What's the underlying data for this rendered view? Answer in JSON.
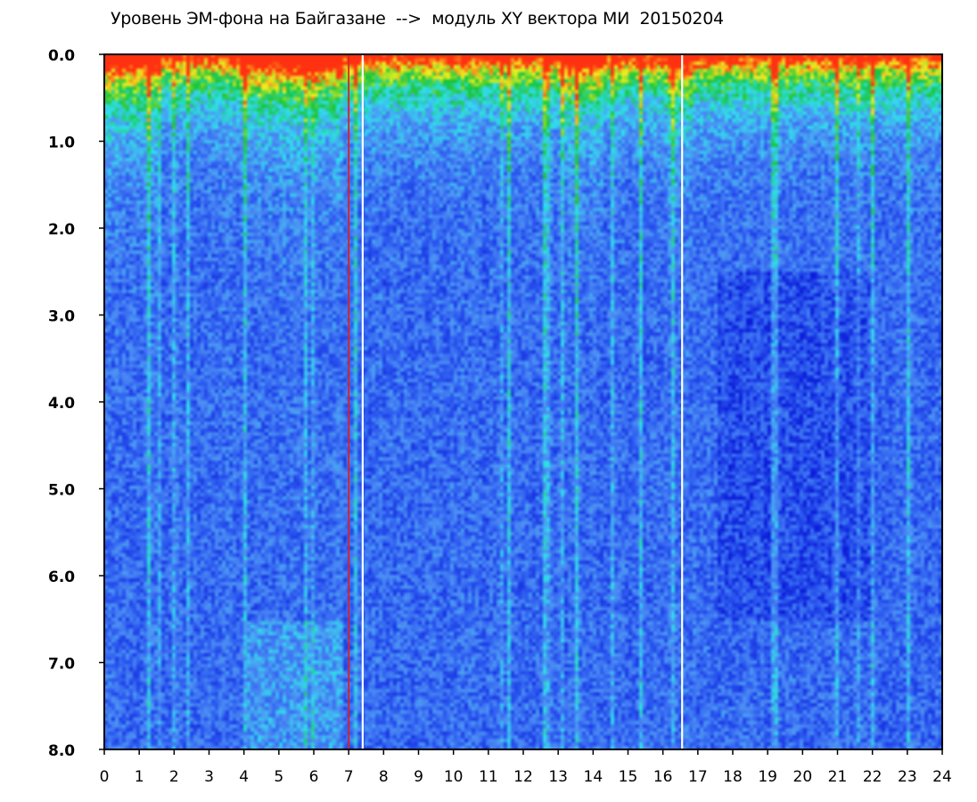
{
  "chart_data": {
    "type": "heatmap",
    "title": "Уровень ЭМ-фона на Байгазане  -->  модуль XY вектора МИ  20150204",
    "xlabel": "",
    "ylabel": "",
    "x_range": [
      0,
      24
    ],
    "y_range": [
      0.0,
      8.0
    ],
    "y_inverted": true,
    "x_ticks": [
      "0",
      "1",
      "2",
      "3",
      "4",
      "5",
      "6",
      "7",
      "8",
      "9",
      "10",
      "11",
      "12",
      "13",
      "14",
      "15",
      "16",
      "17",
      "18",
      "19",
      "20",
      "21",
      "22",
      "23",
      "24"
    ],
    "y_ticks": [
      "0.0",
      "1.0",
      "2.0",
      "3.0",
      "4.0",
      "5.0",
      "6.0",
      "7.0",
      "8.0"
    ],
    "colorscale": [
      "#0a1ad8",
      "#2c5af0",
      "#4d8ff4",
      "#30e0ec",
      "#19c43a",
      "#f0f020",
      "#ff3010"
    ],
    "marker_line": {
      "x": 7.0,
      "color": "#e02020"
    },
    "gap_columns_x": [
      7.4,
      16.55
    ],
    "annotated_features": {
      "high_activity_bands_hours": [
        [
          0,
          1.5
        ],
        [
          3.8,
          6.8
        ],
        [
          13,
          14.2
        ],
        [
          16.1,
          16.8
        ]
      ],
      "deep_blue_region": {
        "x": [
          17.5,
          22
        ],
        "y": [
          2.5,
          6.5
        ]
      }
    }
  }
}
